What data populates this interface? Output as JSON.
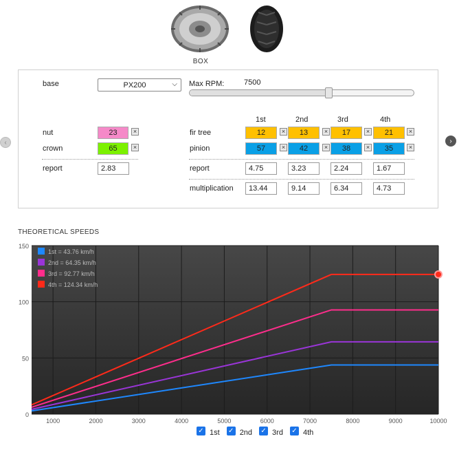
{
  "header": {
    "box_label": "BOX"
  },
  "config": {
    "base_label": "base",
    "base_value": "PX200",
    "max_rpm_label": "Max RPM:",
    "max_rpm_value": "7500",
    "max_rpm_fraction": 0.62
  },
  "primary": {
    "nut_label": "nut",
    "nut_value": "23",
    "crown_label": "crown",
    "crown_value": "65",
    "report_label": "report",
    "report_value": "2.83",
    "nut_color": "#f589c8",
    "crown_color": "#7cf100"
  },
  "gears": {
    "headers": [
      "1st",
      "2nd",
      "3rd",
      "4th"
    ],
    "fir_tree_label": "fir tree",
    "fir_tree": [
      "12",
      "13",
      "17",
      "21"
    ],
    "pinion_label": "pinion",
    "pinion": [
      "57",
      "42",
      "38",
      "35"
    ],
    "report_label": "report",
    "report": [
      "4.75",
      "3.23",
      "2.24",
      "1.67"
    ],
    "multiplication_label": "multiplication",
    "multiplication": [
      "13.44",
      "9.14",
      "6.34",
      "4.73"
    ],
    "fir_tree_color": "#ffc000",
    "pinion_color": "#0aa0e6"
  },
  "chart_title": "THEORETICAL SPEEDS",
  "chart_data": {
    "type": "line",
    "xlim": [
      500,
      10000
    ],
    "ylim": [
      0,
      150
    ],
    "x_ticks": [
      1000,
      2000,
      3000,
      4000,
      5000,
      6000,
      7000,
      8000,
      9000,
      10000
    ],
    "y_ticks": [
      0,
      50,
      100,
      150
    ],
    "series": [
      {
        "name": "1st = 43.76 km/h",
        "color": "#1e88ff",
        "x": [
          500,
          7500,
          10000
        ],
        "y": [
          2.92,
          43.76,
          43.76
        ]
      },
      {
        "name": "2nd = 64.35 km/h",
        "color": "#9a35d8",
        "x": [
          500,
          7500,
          10000
        ],
        "y": [
          4.29,
          64.35,
          64.35
        ]
      },
      {
        "name": "3rd = 92.77 km/h",
        "color": "#ff2d8c",
        "x": [
          500,
          7500,
          10000
        ],
        "y": [
          6.18,
          92.77,
          92.77
        ]
      },
      {
        "name": "4th = 124.34 km/h",
        "color": "#ff2a1a",
        "x": [
          500,
          7500,
          10000
        ],
        "y": [
          8.29,
          124.34,
          124.34
        ]
      }
    ],
    "legend_placement": "top-left",
    "grid": true
  },
  "toggles": [
    {
      "label": "1st",
      "checked": true
    },
    {
      "label": "2nd",
      "checked": true
    },
    {
      "label": "3rd",
      "checked": true
    },
    {
      "label": "4th",
      "checked": true
    }
  ]
}
